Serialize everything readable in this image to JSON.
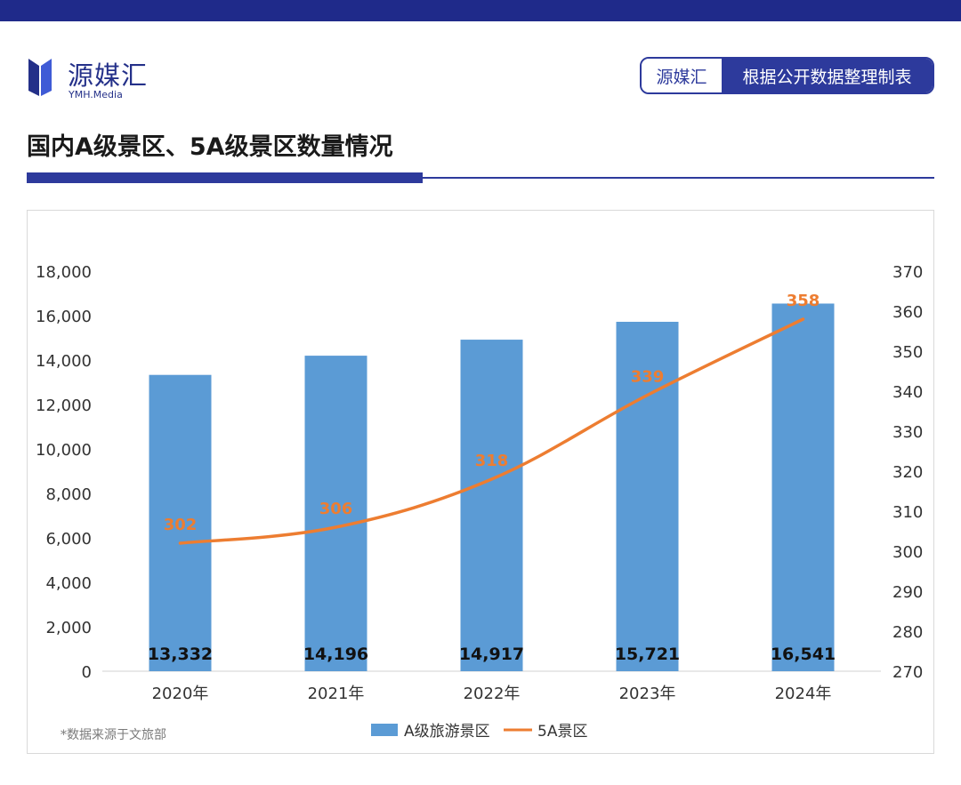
{
  "header": {
    "logo_text": "源媒汇",
    "logo_sub": "YMH.Media",
    "source_tag_left": "源媒汇",
    "source_tag_right": "根据公开数据整理制表"
  },
  "page_title": "国内A级景区、5A级景区数量情况",
  "footnote": "*数据来源于文旅部",
  "colors": {
    "bar": "#5b9bd5",
    "line": "#ed7d31",
    "brand": "#2d3a9c"
  },
  "chart_data": {
    "type": "bar",
    "categories": [
      "2020年",
      "2021年",
      "2022年",
      "2023年",
      "2024年"
    ],
    "series": [
      {
        "name": "A级旅游景区",
        "type": "bar",
        "axis": "left",
        "values": [
          13332,
          14196,
          14917,
          15721,
          16541
        ],
        "labels": [
          "13,332",
          "14,196",
          "14,917",
          "15,721",
          "16,541"
        ]
      },
      {
        "name": "5A景区",
        "type": "line",
        "axis": "right",
        "values": [
          302,
          306,
          318,
          339,
          358
        ],
        "labels": [
          "302",
          "306",
          "318",
          "339",
          "358"
        ]
      }
    ],
    "left_axis": {
      "min": 0,
      "max": 18000,
      "step": 2000,
      "tick_labels": [
        "0",
        "2,000",
        "4,000",
        "6,000",
        "8,000",
        "10,000",
        "12,000",
        "14,000",
        "16,000",
        "18,000"
      ]
    },
    "right_axis": {
      "min": 270,
      "max": 370,
      "step": 10,
      "tick_labels": [
        "270",
        "280",
        "290",
        "300",
        "310",
        "320",
        "330",
        "340",
        "350",
        "360",
        "370"
      ]
    },
    "legend": [
      "A级旅游景区",
      "5A景区"
    ],
    "legend_position": "bottom",
    "grid": false
  }
}
